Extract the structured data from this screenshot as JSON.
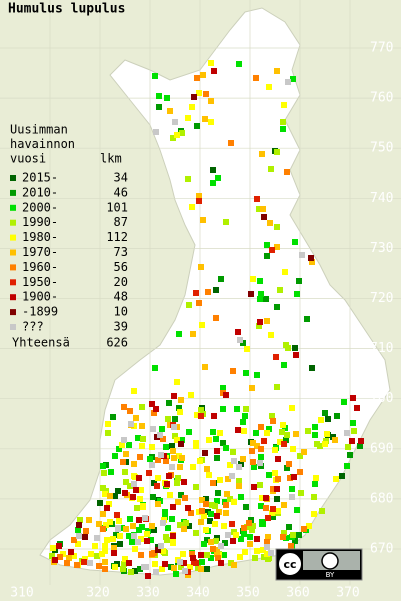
{
  "title": "Humulus lupulus",
  "legend": {
    "heading": [
      "Uusimman",
      "havainnon",
      "vuosi"
    ],
    "count_heading": "lkm",
    "rows": [
      {
        "label": "2015-",
        "count": 34,
        "color": "#006400"
      },
      {
        "label": "2010-",
        "count": 46,
        "color": "#009a00"
      },
      {
        "label": "2000-",
        "count": 101,
        "color": "#00e000"
      },
      {
        "label": "1990-",
        "count": 87,
        "color": "#b0f000"
      },
      {
        "label": "1980-",
        "count": 112,
        "color": "#ffff00"
      },
      {
        "label": "1970-",
        "count": 73,
        "color": "#ffc000"
      },
      {
        "label": "1960-",
        "count": 56,
        "color": "#ff8000"
      },
      {
        "label": "1950-",
        "count": 20,
        "color": "#e02000"
      },
      {
        "label": "1900-",
        "count": 48,
        "color": "#c00000"
      },
      {
        "label": "-1899",
        "count": 10,
        "color": "#800000"
      },
      {
        "label": "???",
        "count": 39,
        "color": "#c8c8c8"
      }
    ],
    "total_label": "Yhteensä",
    "total": 626
  },
  "yticks": [
    770,
    760,
    750,
    740,
    730,
    720,
    710,
    700,
    690,
    680,
    670
  ],
  "xticks": [
    310,
    320,
    330,
    340,
    350,
    360,
    370
  ],
  "license": {
    "cc": "cc",
    "by": "BY"
  }
}
